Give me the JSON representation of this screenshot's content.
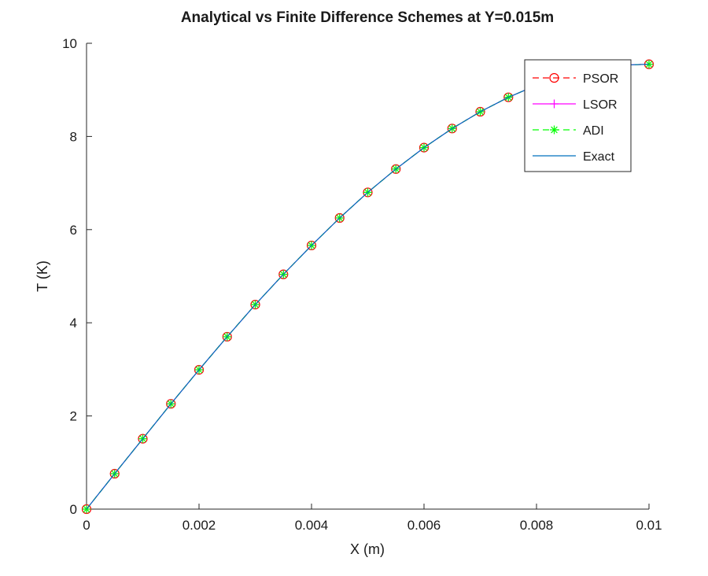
{
  "chart_data": {
    "type": "line",
    "title": "Analytical vs Finite Difference Schemes at Y=0.015m",
    "xlabel": "X (m)",
    "ylabel": "T (K)",
    "xlim": [
      0,
      0.01
    ],
    "ylim": [
      0,
      10
    ],
    "x_ticks": [
      0,
      0.002,
      0.004,
      0.006,
      0.008,
      0.01
    ],
    "x_tick_labels": [
      "0",
      "0.002",
      "0.004",
      "0.006",
      "0.008",
      "0.01"
    ],
    "y_ticks": [
      0,
      2,
      4,
      6,
      8,
      10
    ],
    "y_tick_labels": [
      "0",
      "2",
      "4",
      "6",
      "8",
      "10"
    ],
    "grid": false,
    "legend_position": "top-right",
    "x": [
      0,
      0.0005,
      0.001,
      0.0015,
      0.002,
      0.0025,
      0.003,
      0.0035,
      0.004,
      0.0045,
      0.005,
      0.0055,
      0.006,
      0.0065,
      0.007,
      0.0075,
      0.008,
      0.0085,
      0.009,
      0.0095,
      0.01
    ],
    "series": [
      {
        "name": "PSOR",
        "color": "#ff0000",
        "line_style": "dashed",
        "marker": "circle",
        "values": [
          0,
          0.76,
          1.51,
          2.26,
          2.99,
          3.7,
          4.39,
          5.04,
          5.66,
          6.25,
          6.8,
          7.3,
          7.76,
          8.17,
          8.53,
          8.84,
          9.1,
          9.3,
          9.44,
          9.53,
          9.55
        ]
      },
      {
        "name": "LSOR",
        "color": "#ff00ff",
        "line_style": "solid",
        "marker": "plus",
        "values": [
          0,
          0.76,
          1.51,
          2.26,
          2.99,
          3.7,
          4.39,
          5.04,
          5.66,
          6.25,
          6.8,
          7.3,
          7.76,
          8.17,
          8.53,
          8.84,
          9.1,
          9.3,
          9.44,
          9.53,
          9.55
        ]
      },
      {
        "name": "ADI",
        "color": "#00ff00",
        "line_style": "dashed",
        "marker": "asterisk",
        "values": [
          0,
          0.76,
          1.51,
          2.26,
          2.99,
          3.7,
          4.39,
          5.04,
          5.66,
          6.25,
          6.8,
          7.3,
          7.76,
          8.17,
          8.53,
          8.84,
          9.1,
          9.3,
          9.44,
          9.53,
          9.55
        ]
      },
      {
        "name": "Exact",
        "color": "#0072bd",
        "line_style": "solid",
        "marker": "none",
        "values": [
          0,
          0.76,
          1.51,
          2.26,
          2.99,
          3.7,
          4.39,
          5.04,
          5.66,
          6.25,
          6.8,
          7.3,
          7.76,
          8.17,
          8.53,
          8.84,
          9.1,
          9.3,
          9.44,
          9.53,
          9.55
        ]
      }
    ]
  }
}
